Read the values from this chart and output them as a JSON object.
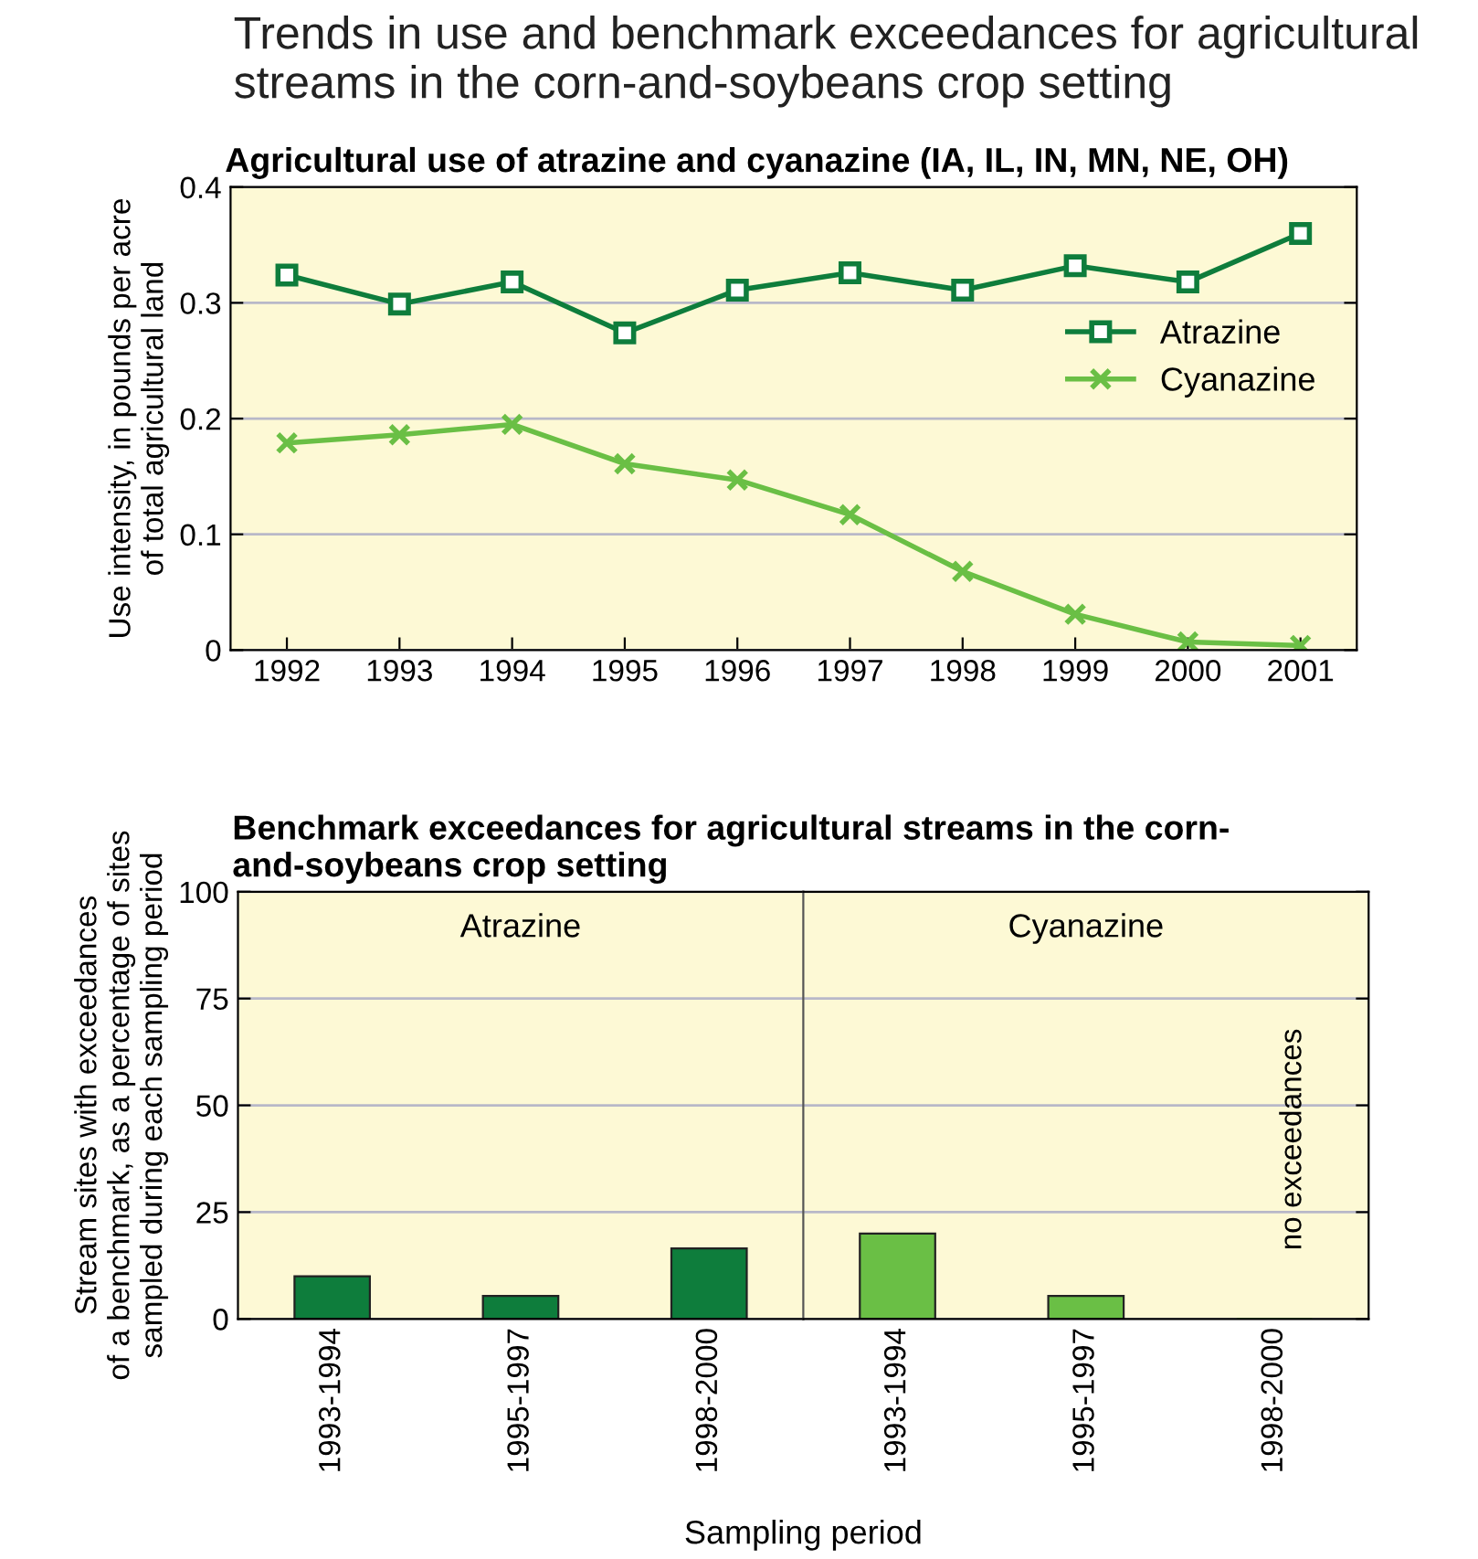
{
  "chart_data": [
    {
      "type": "line",
      "title": "Trends in use and benchmark exceedances for agricultural streams in the corn-and-soybeans crop setting",
      "subtitle": "Agricultural use of atrazine and cyanazine (IA, IL, IN, MN, NE, OH)",
      "ylabel": "Use intensity, in pounds per acre\nof total agricultural land",
      "categories": [
        "1992",
        "1993",
        "1994",
        "1995",
        "1996",
        "1997",
        "1998",
        "1999",
        "2000",
        "2001"
      ],
      "series": [
        {
          "name": "Atrazine",
          "color": "#0e7d3c",
          "marker": "square",
          "values": [
            0.324,
            0.299,
            0.318,
            0.274,
            0.311,
            0.326,
            0.311,
            0.332,
            0.318,
            0.36
          ]
        },
        {
          "name": "Cyanazine",
          "color": "#6abf45",
          "marker": "cross",
          "values": [
            0.179,
            0.186,
            0.195,
            0.161,
            0.147,
            0.117,
            0.068,
            0.031,
            0.007,
            0.004
          ]
        }
      ],
      "ylim": [
        0,
        0.4
      ],
      "yticks": [
        0,
        0.1,
        0.2,
        0.3,
        0.4
      ],
      "grid": "y",
      "legend": "right"
    },
    {
      "type": "bar",
      "title": "Benchmark exceedances for agricultural streams in the corn-\nand-soybeans crop setting",
      "ylabel": "Stream sites with exceedances\nof a benchmark, as a percentage of sites\nsampled during each sampling period",
      "categories": [
        "1993-1994",
        "1995-1997",
        "1998-2000"
      ],
      "values": [
        10,
        5.4,
        16.5
      ],
      "color": "#0e7d3c",
      "annotations": [
        "Atrazine"
      ],
      "ylim": [
        0,
        100
      ],
      "yticks": [
        0,
        25,
        50,
        75,
        100
      ],
      "grid": "y"
    },
    {
      "type": "bar",
      "xlabel": "Sampling period",
      "categories": [
        "1993-1994",
        "1995-1997",
        "1998-2000"
      ],
      "values": [
        20,
        5.4,
        0
      ],
      "color": "#6abf45",
      "annotations": [
        "Cyanazine",
        "no exceedances"
      ],
      "ylim": [
        0,
        100
      ],
      "yticks": [
        0,
        25,
        50,
        75,
        100
      ],
      "grid": "y",
      "tick_labels": "x"
    }
  ]
}
